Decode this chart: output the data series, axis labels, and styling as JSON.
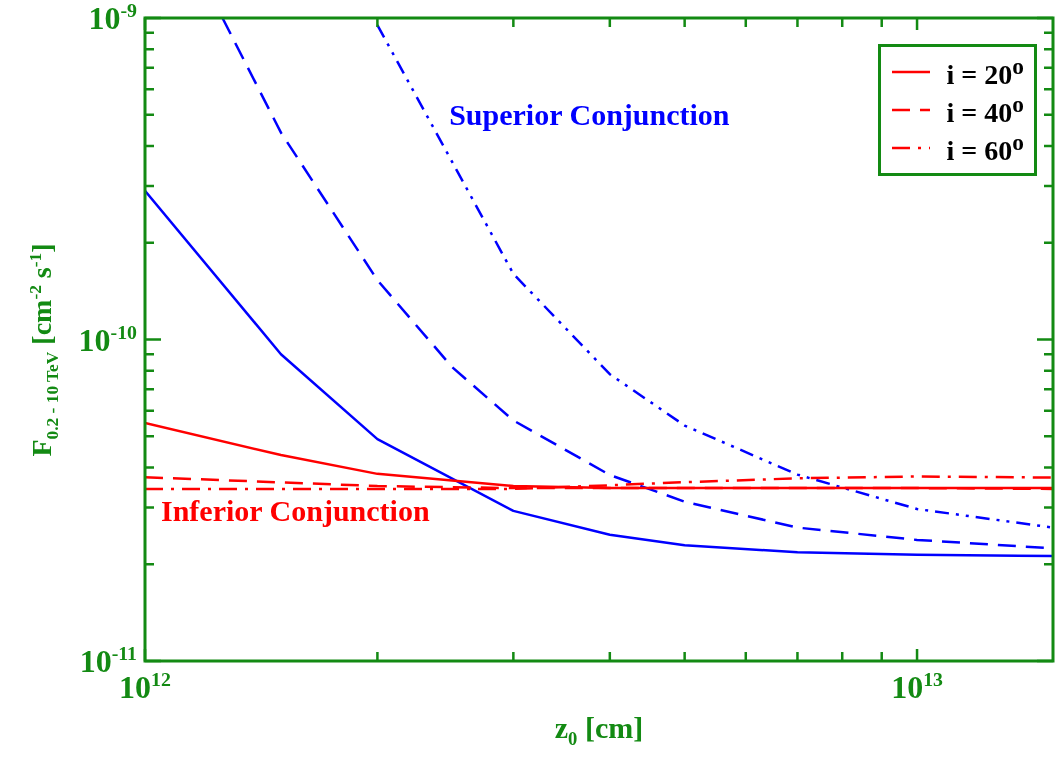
{
  "chart_data": {
    "type": "line",
    "xlabel": "z$_{0}$ [cm]",
    "ylabel": "F$_{0.2 - 10 TeV}$ [cm$^{-2}$ s$^{-1}$]",
    "log": "xy",
    "legend": "top right",
    "xlim": [
      1000000000000.0,
      15000000000000.0
    ],
    "ylim": [
      1e-11,
      1e-09
    ],
    "xticks": [
      {
        "value": 1000000000000.0,
        "label": "10$^{12}$"
      },
      {
        "value": 2000000000000.0,
        "label": null
      },
      {
        "value": 3000000000000.0,
        "label": null
      },
      {
        "value": 4000000000000.0,
        "label": null
      },
      {
        "value": 5000000000000.0,
        "label": null
      },
      {
        "value": 6000000000000.0,
        "label": null
      },
      {
        "value": 7000000000000.0,
        "label": null
      },
      {
        "value": 8000000000000.0,
        "label": null
      },
      {
        "value": 9000000000000.0,
        "label": null
      },
      {
        "value": 10000000000000.0,
        "label": "10$^{13}$"
      }
    ],
    "yticks": [
      {
        "value": 1e-11,
        "label": "10$^{-11}$"
      },
      {
        "value": 2e-11,
        "label": null
      },
      {
        "value": 3e-11,
        "label": null
      },
      {
        "value": 4e-11,
        "label": null
      },
      {
        "value": 5e-11,
        "label": null
      },
      {
        "value": 6e-11,
        "label": null
      },
      {
        "value": 7e-11,
        "label": null
      },
      {
        "value": 8e-11,
        "label": null
      },
      {
        "value": 9e-11,
        "label": null
      },
      {
        "value": 1e-10,
        "label": "10$^{-10}$"
      },
      {
        "value": 2e-10,
        "label": null
      },
      {
        "value": 3e-10,
        "label": null
      },
      {
        "value": 4e-10,
        "label": null
      },
      {
        "value": 5e-10,
        "label": null
      },
      {
        "value": 6e-10,
        "label": null
      },
      {
        "value": 7e-10,
        "label": null
      },
      {
        "value": 8e-10,
        "label": null
      },
      {
        "value": 9e-10,
        "label": null
      },
      {
        "value": 1e-09,
        "label": "10$^{-9}$"
      }
    ],
    "annotations": [
      "Superior Conjunction",
      "Inferior Conjunction"
    ],
    "series": [
      {
        "name": "i = 20$^{o}$",
        "color": "#ff0000",
        "line_style": "solid",
        "x": [
          1000000000000.0,
          1500000000000.0,
          2000000000000.0,
          3000000000000.0,
          4000000000000.0,
          5000000000000.0,
          7000000000000.0,
          10000000000000.0,
          15000000000000.0
        ],
        "values": [
          5.5e-11,
          4.37e-11,
          3.82e-11,
          3.5e-11,
          3.45e-11,
          3.45e-11,
          3.45e-11,
          3.45e-11,
          3.45e-11
        ]
      },
      {
        "name": "i = 40$^{o}$",
        "color": "#ff0000",
        "line_style": "dashed",
        "x": [
          1000000000000.0,
          2000000000000.0,
          3000000000000.0,
          4000000000000.0,
          5000000000000.0,
          7000000000000.0,
          10000000000000.0,
          15000000000000.0
        ],
        "values": [
          3.73e-11,
          3.5e-11,
          3.45e-11,
          3.45e-11,
          3.45e-11,
          3.45e-11,
          3.45e-11,
          3.43e-11
        ]
      },
      {
        "name": "i = 60$^{o}$",
        "color": "#ff0000",
        "line_style": "dashdot",
        "x": [
          1000000000000.0,
          2000000000000.0,
          3000000000000.0,
          4000000000000.0,
          5000000000000.0,
          7000000000000.0,
          10000000000000.0,
          15000000000000.0
        ],
        "values": [
          3.43e-11,
          3.43e-11,
          3.43e-11,
          3.52e-11,
          3.6e-11,
          3.7e-11,
          3.75e-11,
          3.72e-11
        ]
      },
      {
        "color": "#0000ff",
        "line_style": "solid",
        "x": [
          1000000000000.0,
          1500000000000.0,
          2000000000000.0,
          3000000000000.0,
          4000000000000.0,
          5000000000000.0,
          7000000000000.0,
          10000000000000.0,
          15000000000000.0
        ],
        "values": [
          2.9e-10,
          9e-11,
          4.9e-11,
          2.93e-11,
          2.47e-11,
          2.29e-11,
          2.18e-11,
          2.14e-11,
          2.12e-11
        ]
      },
      {
        "color": "#0000ff",
        "line_style": "dashed",
        "x": [
          1260000000000.0,
          1500000000000.0,
          2000000000000.0,
          2500000000000.0,
          3000000000000.0,
          4000000000000.0,
          5000000000000.0,
          7000000000000.0,
          10000000000000.0,
          15000000000000.0
        ],
        "values": [
          1e-09,
          4.4e-10,
          1.53e-10,
          8.2e-11,
          5.6e-11,
          3.79e-11,
          3.13e-11,
          2.6e-11,
          2.38e-11,
          2.24e-11
        ]
      },
      {
        "color": "#0000ff",
        "line_style": "dashdotdot",
        "x": [
          2000000000000.0,
          3000000000000.0,
          4000000000000.0,
          5000000000000.0,
          7000000000000.0,
          10000000000000.0,
          15000000000000.0
        ],
        "values": [
          9.5e-10,
          1.6e-10,
          7.8e-11,
          5.4e-11,
          3.8e-11,
          2.97e-11,
          2.6e-11
        ]
      }
    ]
  }
}
